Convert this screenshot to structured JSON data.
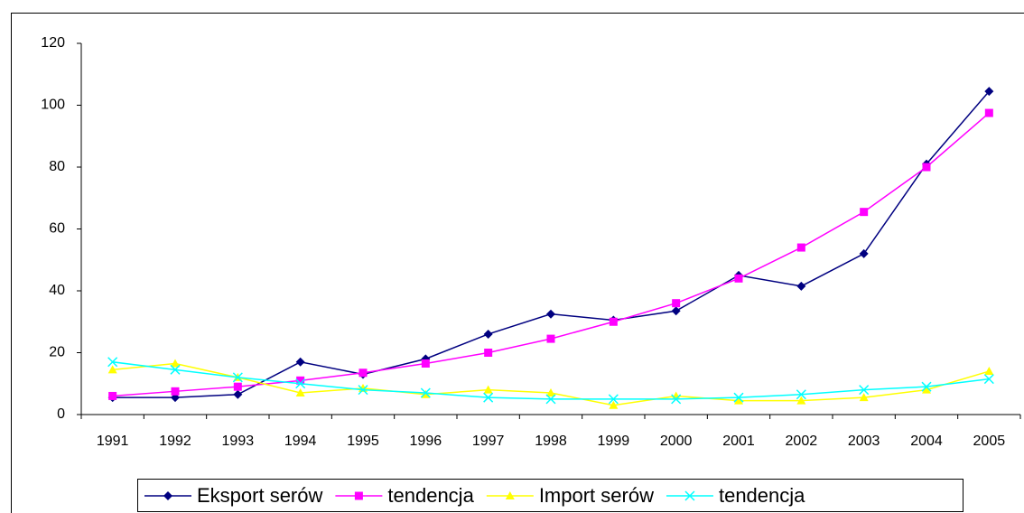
{
  "chart_data": {
    "type": "line",
    "categories": [
      "1991",
      "1992",
      "1993",
      "1994",
      "1995",
      "1996",
      "1997",
      "1998",
      "1999",
      "2000",
      "2001",
      "2002",
      "2003",
      "2004",
      "2005"
    ],
    "series": [
      {
        "name": "Eksport serów",
        "color": "#000080",
        "marker": "diamond",
        "values": [
          5.5,
          5.5,
          6.5,
          17,
          13,
          18,
          26,
          32.5,
          30.5,
          33.5,
          45,
          41.5,
          52,
          81,
          104.5
        ]
      },
      {
        "name": "tendencja",
        "color": "#ff00ff",
        "marker": "square",
        "values": [
          6,
          7.5,
          9,
          11,
          13.5,
          16.5,
          20,
          24.5,
          30,
          36,
          44,
          54,
          65.5,
          80,
          97.5
        ]
      },
      {
        "name": "Import serów",
        "color": "#ffff00",
        "marker": "triangle",
        "values": [
          14.5,
          16.5,
          12,
          7,
          8.5,
          6.5,
          8,
          7,
          3,
          6,
          4.5,
          4.5,
          5.5,
          8,
          14
        ]
      },
      {
        "name": "tendencja",
        "color": "#00ffff",
        "marker": "x",
        "values": [
          17,
          14.5,
          12,
          10,
          8,
          7,
          5.5,
          5,
          5,
          5,
          5.5,
          6.5,
          8,
          9,
          11.5
        ]
      }
    ],
    "ylim": [
      0,
      120
    ],
    "yticks": [
      0,
      20,
      40,
      60,
      80,
      100,
      120
    ],
    "legend": "bottom"
  }
}
